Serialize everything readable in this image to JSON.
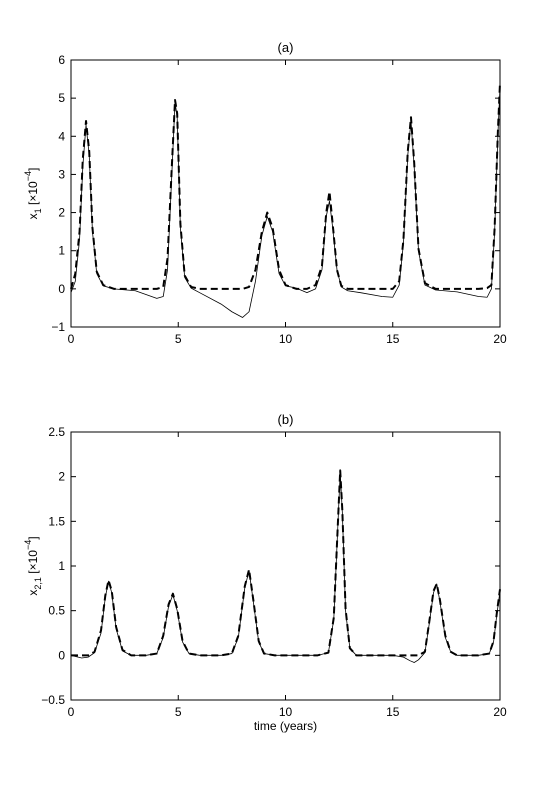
{
  "chart_data": [
    {
      "type": "line",
      "title": "(a)",
      "xlabel": "",
      "ylabel_base": "x",
      "ylabel_sub": "1",
      "ylabel_unit": "[×10",
      "ylabel_exp": "−4",
      "ylabel_close": "]",
      "xlim": [
        0,
        20
      ],
      "ylim": [
        -1,
        6
      ],
      "xticks": [
        0,
        5,
        10,
        15,
        20
      ],
      "yticks": [
        -1,
        0,
        1,
        2,
        3,
        4,
        5,
        6
      ],
      "grid": false,
      "series": [
        {
          "style": "solid",
          "x": [
            0,
            0.2,
            0.4,
            0.55,
            0.7,
            0.85,
            1.0,
            1.2,
            1.5,
            2.0,
            3.0,
            4.0,
            4.3,
            4.5,
            4.7,
            4.85,
            4.95,
            5.1,
            5.3,
            5.6,
            6.0,
            7.0,
            7.5,
            8.0,
            8.3,
            8.6,
            8.9,
            9.15,
            9.4,
            9.7,
            10.0,
            10.5,
            11.0,
            11.4,
            11.7,
            11.9,
            12.05,
            12.2,
            12.4,
            12.6,
            12.9,
            13.5,
            14.5,
            15.0,
            15.3,
            15.5,
            15.7,
            15.85,
            16.0,
            16.2,
            16.5,
            17.0,
            18.0,
            19.0,
            19.4,
            19.6,
            19.75,
            19.9,
            20.0
          ],
          "y": [
            -0.1,
            0.2,
            1.3,
            3.2,
            4.3,
            3.5,
            1.5,
            0.4,
            0.08,
            0.0,
            -0.05,
            -0.25,
            -0.2,
            0.5,
            3.0,
            4.9,
            4.5,
            1.6,
            0.3,
            0.02,
            -0.1,
            -0.4,
            -0.6,
            -0.75,
            -0.6,
            0.2,
            1.4,
            1.9,
            1.5,
            0.4,
            0.08,
            0.02,
            -0.1,
            0.0,
            0.5,
            1.9,
            2.3,
            1.6,
            0.5,
            0.05,
            -0.05,
            -0.1,
            -0.2,
            -0.22,
            0.1,
            1.2,
            3.5,
            4.4,
            3.2,
            1.0,
            0.1,
            -0.03,
            -0.08,
            -0.2,
            -0.22,
            0.0,
            1.5,
            4.0,
            5.3
          ]
        },
        {
          "style": "dashed",
          "x": [
            0,
            0.2,
            0.4,
            0.55,
            0.7,
            0.85,
            1.0,
            1.2,
            1.5,
            2.0,
            3.0,
            4.0,
            4.3,
            4.5,
            4.7,
            4.85,
            4.95,
            5.1,
            5.3,
            5.6,
            6.0,
            7.0,
            8.0,
            8.3,
            8.6,
            8.9,
            9.15,
            9.4,
            9.7,
            10.0,
            10.5,
            11.0,
            11.4,
            11.7,
            11.9,
            12.05,
            12.2,
            12.4,
            12.6,
            12.9,
            13.5,
            14.5,
            15.0,
            15.3,
            15.5,
            15.7,
            15.85,
            16.0,
            16.2,
            16.5,
            17.0,
            18.0,
            19.0,
            19.4,
            19.6,
            19.75,
            19.9,
            20.0
          ],
          "y": [
            0.0,
            0.4,
            1.5,
            3.4,
            4.4,
            3.6,
            1.6,
            0.45,
            0.1,
            0.0,
            0.0,
            0.0,
            0.05,
            0.8,
            3.2,
            4.95,
            4.6,
            1.7,
            0.35,
            0.05,
            0.0,
            0.0,
            0.0,
            0.05,
            0.5,
            1.5,
            2.0,
            1.6,
            0.5,
            0.1,
            0.0,
            0.0,
            0.1,
            0.6,
            2.0,
            2.55,
            1.7,
            0.5,
            0.08,
            0.0,
            0.0,
            0.0,
            0.0,
            0.2,
            1.3,
            3.6,
            4.5,
            3.3,
            1.05,
            0.15,
            0.0,
            0.0,
            0.0,
            0.02,
            0.1,
            1.6,
            4.1,
            5.4
          ]
        }
      ]
    },
    {
      "type": "line",
      "title": "(b)",
      "xlabel": "time (years)",
      "ylabel_base": "x",
      "ylabel_sub": "2,1",
      "ylabel_unit": "[×10",
      "ylabel_exp": "−4",
      "ylabel_close": "]",
      "xlim": [
        0,
        20
      ],
      "ylim": [
        -0.5,
        2.5
      ],
      "xticks": [
        0,
        5,
        10,
        15,
        20
      ],
      "yticks": [
        -0.5,
        0,
        0.5,
        1,
        1.5,
        2,
        2.5
      ],
      "grid": false,
      "series": [
        {
          "style": "solid",
          "x": [
            0,
            0.5,
            0.8,
            1.1,
            1.4,
            1.6,
            1.75,
            1.9,
            2.1,
            2.4,
            2.8,
            3.5,
            4.0,
            4.3,
            4.55,
            4.75,
            4.95,
            5.2,
            5.5,
            6.0,
            7.0,
            7.5,
            7.8,
            8.1,
            8.3,
            8.5,
            8.75,
            9.0,
            9.5,
            10.5,
            11.5,
            12.0,
            12.25,
            12.45,
            12.55,
            12.65,
            12.8,
            13.0,
            13.3,
            14.0,
            15.0,
            15.5,
            15.8,
            16.0,
            16.2,
            16.5,
            16.7,
            16.9,
            17.05,
            17.2,
            17.45,
            17.7,
            18.0,
            19.0,
            19.5,
            19.7,
            19.85,
            20.0
          ],
          "y": [
            0.0,
            -0.03,
            -0.02,
            0.03,
            0.25,
            0.65,
            0.83,
            0.7,
            0.3,
            0.05,
            0.0,
            0.0,
            0.02,
            0.2,
            0.55,
            0.68,
            0.5,
            0.15,
            0.02,
            0.0,
            0.0,
            0.02,
            0.2,
            0.75,
            0.95,
            0.6,
            0.15,
            0.02,
            0.0,
            0.0,
            0.0,
            0.03,
            0.4,
            1.5,
            2.05,
            1.6,
            0.5,
            0.08,
            0.0,
            0.0,
            0.0,
            -0.02,
            -0.06,
            -0.08,
            -0.05,
            0.03,
            0.35,
            0.7,
            0.8,
            0.6,
            0.2,
            0.04,
            0.0,
            0.0,
            0.02,
            0.15,
            0.45,
            0.72
          ]
        },
        {
          "style": "dashed",
          "x": [
            0,
            0.5,
            0.8,
            1.1,
            1.4,
            1.6,
            1.75,
            1.9,
            2.1,
            2.4,
            2.8,
            3.5,
            4.0,
            4.3,
            4.55,
            4.75,
            4.95,
            5.2,
            5.5,
            6.0,
            7.0,
            7.5,
            7.8,
            8.1,
            8.3,
            8.5,
            8.75,
            9.0,
            9.5,
            10.5,
            11.5,
            12.0,
            12.25,
            12.45,
            12.55,
            12.65,
            12.8,
            13.0,
            13.3,
            14.0,
            15.0,
            15.5,
            15.8,
            16.0,
            16.2,
            16.5,
            16.7,
            16.9,
            17.05,
            17.2,
            17.45,
            17.7,
            18.0,
            19.0,
            19.5,
            19.7,
            19.85,
            20.0
          ],
          "y": [
            0.0,
            0.0,
            0.0,
            0.04,
            0.28,
            0.67,
            0.84,
            0.72,
            0.32,
            0.06,
            0.0,
            0.0,
            0.02,
            0.22,
            0.57,
            0.69,
            0.52,
            0.16,
            0.02,
            0.0,
            0.0,
            0.02,
            0.22,
            0.77,
            0.96,
            0.62,
            0.16,
            0.02,
            0.0,
            0.0,
            0.0,
            0.03,
            0.42,
            1.52,
            2.07,
            1.62,
            0.52,
            0.08,
            0.0,
            0.0,
            0.0,
            0.0,
            0.0,
            0.0,
            0.0,
            0.04,
            0.37,
            0.72,
            0.8,
            0.62,
            0.22,
            0.04,
            0.0,
            0.0,
            0.02,
            0.16,
            0.47,
            0.74
          ]
        }
      ]
    }
  ]
}
